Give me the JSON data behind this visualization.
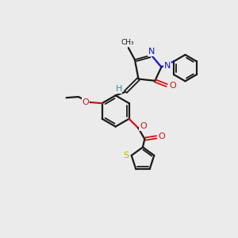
{
  "bg_color": "#ebebeb",
  "bond_color": "#1a1a1a",
  "N_color": "#1414cc",
  "O_color": "#cc1414",
  "S_color": "#b8b800",
  "H_color": "#2a9090",
  "figsize": [
    3.0,
    3.0
  ],
  "dpi": 100,
  "xlim": [
    0,
    10
  ],
  "ylim": [
    0,
    10
  ]
}
